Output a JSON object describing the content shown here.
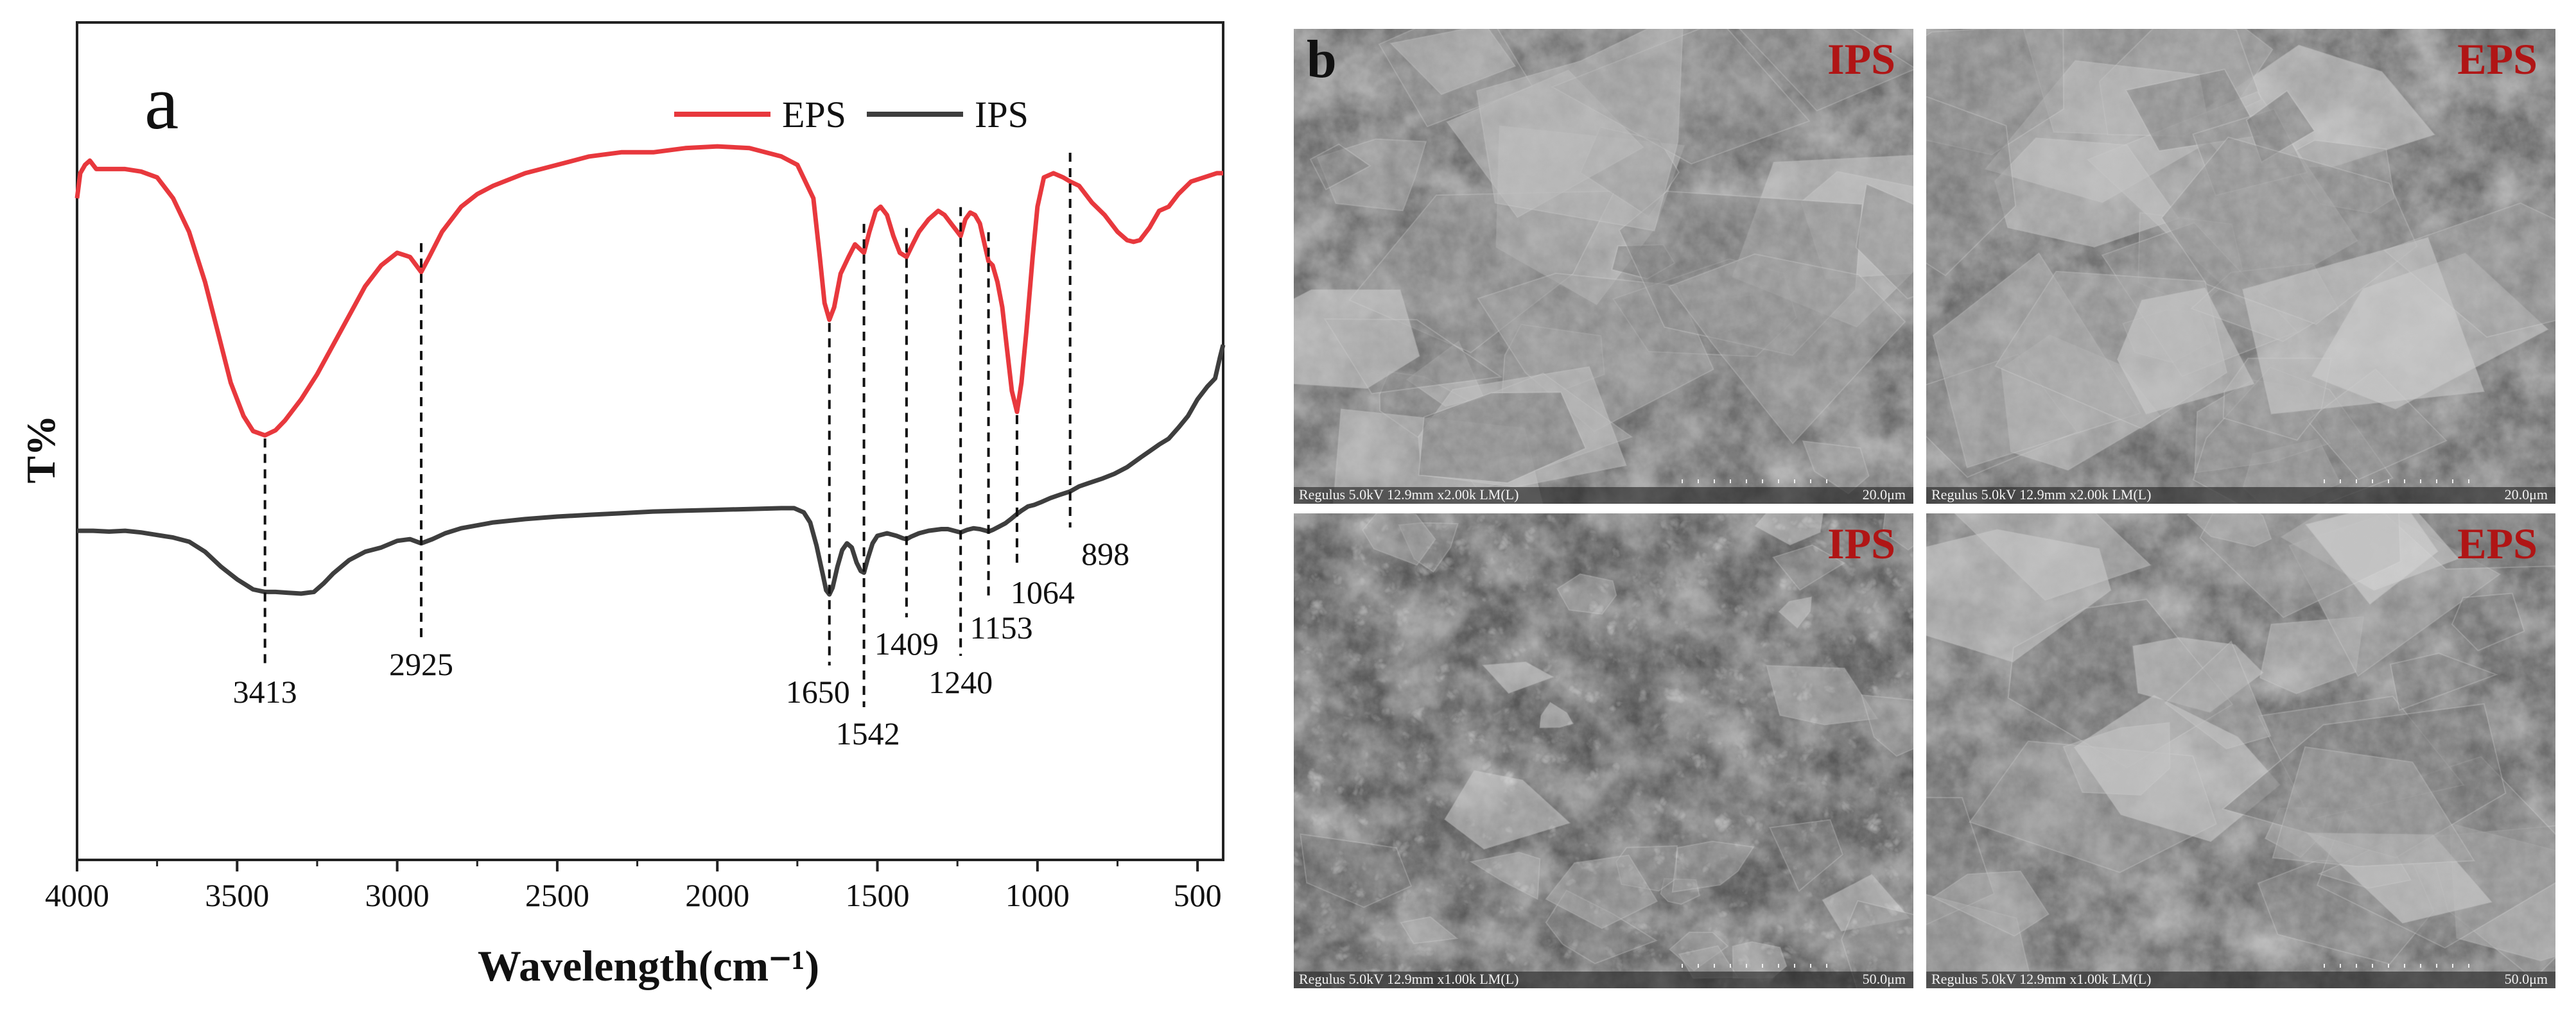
{
  "panel_a": {
    "label": "a",
    "chart_data": {
      "type": "line",
      "xlabel": "Wavelength(cm⁻¹)",
      "ylabel": "T%",
      "xlim": [
        4000,
        420
      ],
      "x_reversed": true,
      "x_ticks": [
        4000,
        3500,
        3000,
        2500,
        2000,
        1500,
        1000,
        500
      ],
      "x_tick_labels": [
        "4000",
        "3500",
        "3000",
        "2500",
        "2000",
        "1500",
        "1000",
        "500"
      ],
      "ylim": [
        0,
        100
      ],
      "y_ticks_visible": false,
      "grid": false,
      "legend_position": "top-right",
      "series": [
        {
          "name": "EPS",
          "color": "#e8383d",
          "points": [
            [
              4000,
              79
            ],
            [
              3990,
              82
            ],
            [
              3975,
              83
            ],
            [
              3960,
              83.5
            ],
            [
              3940,
              82.5
            ],
            [
              3900,
              82.5
            ],
            [
              3850,
              82.5
            ],
            [
              3800,
              82.2
            ],
            [
              3750,
              81.5
            ],
            [
              3700,
              79
            ],
            [
              3650,
              75
            ],
            [
              3600,
              69
            ],
            [
              3560,
              63
            ],
            [
              3520,
              57
            ],
            [
              3480,
              53
            ],
            [
              3450,
              51.2
            ],
            [
              3413,
              50.7
            ],
            [
              3380,
              51.3
            ],
            [
              3350,
              52.5
            ],
            [
              3300,
              55
            ],
            [
              3250,
              58
            ],
            [
              3200,
              61.5
            ],
            [
              3150,
              65
            ],
            [
              3100,
              68.5
            ],
            [
              3050,
              71
            ],
            [
              3000,
              72.5
            ],
            [
              2960,
              72
            ],
            [
              2925,
              70.2
            ],
            [
              2900,
              72
            ],
            [
              2860,
              75
            ],
            [
              2800,
              78
            ],
            [
              2750,
              79.5
            ],
            [
              2700,
              80.5
            ],
            [
              2600,
              82
            ],
            [
              2500,
              83
            ],
            [
              2400,
              84
            ],
            [
              2300,
              84.5
            ],
            [
              2200,
              84.5
            ],
            [
              2100,
              85
            ],
            [
              2000,
              85.2
            ],
            [
              1900,
              85
            ],
            [
              1800,
              84
            ],
            [
              1750,
              83
            ],
            [
              1700,
              79
            ],
            [
              1680,
              72
            ],
            [
              1665,
              66.5
            ],
            [
              1650,
              64.5
            ],
            [
              1635,
              66
            ],
            [
              1615,
              70
            ],
            [
              1590,
              72
            ],
            [
              1570,
              73.5
            ],
            [
              1542,
              72.5
            ],
            [
              1525,
              75
            ],
            [
              1505,
              77.5
            ],
            [
              1490,
              78
            ],
            [
              1470,
              77
            ],
            [
              1450,
              74.5
            ],
            [
              1430,
              72.5
            ],
            [
              1409,
              72
            ],
            [
              1390,
              73.5
            ],
            [
              1370,
              75
            ],
            [
              1340,
              76.5
            ],
            [
              1310,
              77.5
            ],
            [
              1290,
              77
            ],
            [
              1270,
              76
            ],
            [
              1250,
              75
            ],
            [
              1240,
              74.5
            ],
            [
              1225,
              76.5
            ],
            [
              1210,
              77.3
            ],
            [
              1195,
              77
            ],
            [
              1180,
              76
            ],
            [
              1165,
              73.5
            ],
            [
              1153,
              71.5
            ],
            [
              1140,
              71
            ],
            [
              1125,
              69
            ],
            [
              1110,
              66
            ],
            [
              1095,
              61
            ],
            [
              1080,
              56
            ],
            [
              1064,
              53.5
            ],
            [
              1050,
              57
            ],
            [
              1035,
              63
            ],
            [
              1015,
              72
            ],
            [
              1000,
              78
            ],
            [
              980,
              81.5
            ],
            [
              950,
              82
            ],
            [
              920,
              81.5
            ],
            [
              898,
              81
            ],
            [
              870,
              80.5
            ],
            [
              830,
              78.5
            ],
            [
              790,
              77
            ],
            [
              750,
              75
            ],
            [
              720,
              74
            ],
            [
              700,
              73.8
            ],
            [
              680,
              74
            ],
            [
              650,
              75.5
            ],
            [
              620,
              77.5
            ],
            [
              590,
              78
            ],
            [
              560,
              79.5
            ],
            [
              520,
              81
            ],
            [
              480,
              81.5
            ],
            [
              440,
              82
            ],
            [
              420,
              82
            ]
          ]
        },
        {
          "name": "IPS",
          "color": "#3e3e3e",
          "points": [
            [
              4000,
              39.3
            ],
            [
              3950,
              39.3
            ],
            [
              3900,
              39.2
            ],
            [
              3850,
              39.3
            ],
            [
              3800,
              39.1
            ],
            [
              3750,
              38.8
            ],
            [
              3700,
              38.5
            ],
            [
              3650,
              38
            ],
            [
              3600,
              36.8
            ],
            [
              3550,
              35
            ],
            [
              3500,
              33.5
            ],
            [
              3450,
              32.3
            ],
            [
              3413,
              32
            ],
            [
              3380,
              32
            ],
            [
              3340,
              31.9
            ],
            [
              3300,
              31.8
            ],
            [
              3260,
              32
            ],
            [
              3230,
              33
            ],
            [
              3200,
              34.2
            ],
            [
              3150,
              35.8
            ],
            [
              3100,
              36.8
            ],
            [
              3050,
              37.3
            ],
            [
              3000,
              38.1
            ],
            [
              2960,
              38.3
            ],
            [
              2925,
              37.8
            ],
            [
              2890,
              38.3
            ],
            [
              2850,
              39
            ],
            [
              2800,
              39.6
            ],
            [
              2700,
              40.3
            ],
            [
              2600,
              40.7
            ],
            [
              2500,
              41
            ],
            [
              2400,
              41.2
            ],
            [
              2300,
              41.4
            ],
            [
              2200,
              41.6
            ],
            [
              2100,
              41.7
            ],
            [
              2000,
              41.8
            ],
            [
              1900,
              41.9
            ],
            [
              1800,
              42
            ],
            [
              1760,
              42
            ],
            [
              1730,
              41.5
            ],
            [
              1710,
              40.3
            ],
            [
              1690,
              37.5
            ],
            [
              1670,
              34
            ],
            [
              1660,
              32.2
            ],
            [
              1650,
              31.7
            ],
            [
              1640,
              32.5
            ],
            [
              1625,
              35
            ],
            [
              1610,
              37
            ],
            [
              1595,
              37.8
            ],
            [
              1580,
              37.3
            ],
            [
              1565,
              35.5
            ],
            [
              1552,
              34.5
            ],
            [
              1542,
              34.3
            ],
            [
              1530,
              36
            ],
            [
              1515,
              37.8
            ],
            [
              1500,
              38.7
            ],
            [
              1470,
              39
            ],
            [
              1440,
              38.7
            ],
            [
              1420,
              38.4
            ],
            [
              1409,
              38.3
            ],
            [
              1395,
              38.6
            ],
            [
              1370,
              39
            ],
            [
              1340,
              39.3
            ],
            [
              1300,
              39.5
            ],
            [
              1280,
              39.5
            ],
            [
              1260,
              39.3
            ],
            [
              1240,
              39.1
            ],
            [
              1220,
              39.4
            ],
            [
              1200,
              39.6
            ],
            [
              1180,
              39.5
            ],
            [
              1160,
              39.3
            ],
            [
              1153,
              39.2
            ],
            [
              1140,
              39.4
            ],
            [
              1120,
              39.8
            ],
            [
              1100,
              40.2
            ],
            [
              1080,
              40.8
            ],
            [
              1064,
              41.3
            ],
            [
              1050,
              41.7
            ],
            [
              1030,
              42.2
            ],
            [
              1010,
              42.4
            ],
            [
              990,
              42.7
            ],
            [
              960,
              43.2
            ],
            [
              930,
              43.6
            ],
            [
              898,
              44
            ],
            [
              870,
              44.6
            ],
            [
              840,
              45
            ],
            [
              800,
              45.5
            ],
            [
              760,
              46.1
            ],
            [
              720,
              46.9
            ],
            [
              680,
              48
            ],
            [
              650,
              48.8
            ],
            [
              620,
              49.6
            ],
            [
              590,
              50.3
            ],
            [
              560,
              51.6
            ],
            [
              530,
              53
            ],
            [
              500,
              55
            ],
            [
              470,
              56.5
            ],
            [
              445,
              57.5
            ],
            [
              430,
              60
            ],
            [
              420,
              61.5
            ]
          ]
        }
      ],
      "annotations": [
        {
          "label": "3413",
          "x": 3413
        },
        {
          "label": "2925",
          "x": 2925
        },
        {
          "label": "1650",
          "x": 1650
        },
        {
          "label": "1542",
          "x": 1542
        },
        {
          "label": "1409",
          "x": 1409
        },
        {
          "label": "1240",
          "x": 1240
        },
        {
          "label": "1153",
          "x": 1153
        },
        {
          "label": "1064",
          "x": 1064
        },
        {
          "label": "898",
          "x": 898
        }
      ]
    }
  },
  "panel_b": {
    "label": "b",
    "images": [
      {
        "sample_label": "IPS",
        "caption": "Regulus 5.0kV 12.9mm x2.00k LM(L)",
        "scale_label": "20.0μm",
        "texture": "flakes"
      },
      {
        "sample_label": "EPS",
        "caption": "Regulus 5.0kV 12.9mm x2.00k LM(L)",
        "scale_label": "20.0μm",
        "texture": "sheets"
      },
      {
        "sample_label": "IPS",
        "caption": "Regulus 5.0kV 12.9mm x1.00k LM(L)",
        "scale_label": "50.0μm",
        "texture": "particles"
      },
      {
        "sample_label": "EPS",
        "caption": "Regulus 5.0kV 12.9mm x1.00k LM(L)",
        "scale_label": "50.0μm",
        "texture": "sheets-dense"
      }
    ],
    "label_color": "#b01515"
  }
}
